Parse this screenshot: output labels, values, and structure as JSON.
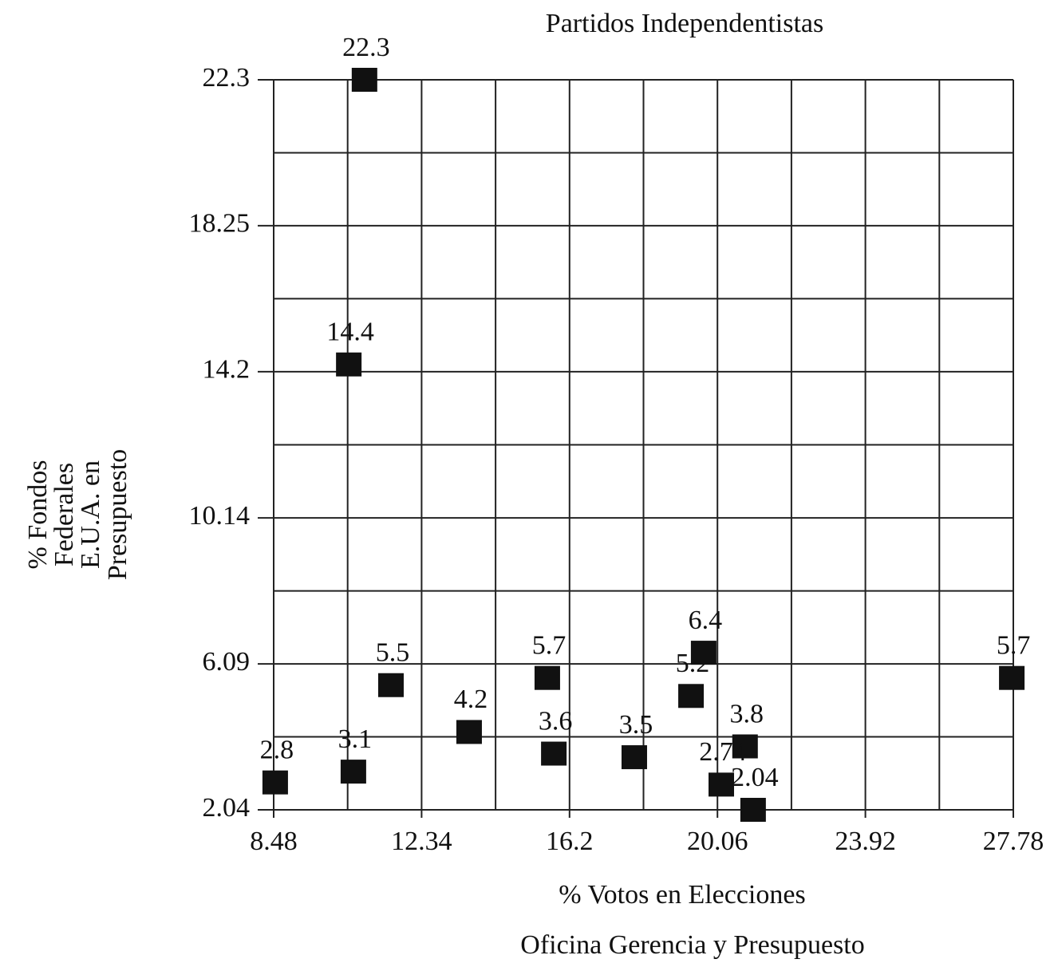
{
  "chart_data": {
    "type": "scatter",
    "title": "Partidos Independentistas",
    "xlabel": "% Votos en Elecciones",
    "ylabel": [
      "% Fondos",
      "Federales",
      "E.U.A. en",
      "Presupuesto"
    ],
    "caption": "Oficina Gerencia y Presupuesto",
    "x": [
      8.52,
      10.56,
      10.85,
      10.44,
      11.54,
      13.58,
      15.62,
      15.79,
      17.89,
      19.37,
      19.7,
      20.78,
      20.16,
      20.99,
      27.74
    ],
    "values": [
      2.8,
      3.1,
      22.3,
      14.4,
      5.5,
      4.2,
      5.7,
      3.6,
      3.5,
      5.2,
      6.4,
      3.8,
      2.74,
      2.04,
      5.7
    ],
    "color": "#111111",
    "xlim": [
      8.48,
      27.78
    ],
    "xticks": [
      8.48,
      12.34,
      16.2,
      20.06,
      23.92,
      27.78
    ],
    "ylim": [
      2.04,
      22.3
    ],
    "yticks": [
      2.04,
      6.09,
      10.14,
      14.2,
      18.25,
      22.3
    ],
    "grid": true
  }
}
